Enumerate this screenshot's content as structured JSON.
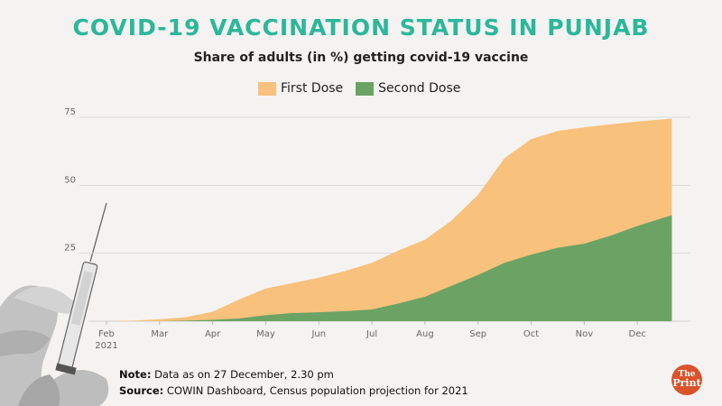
{
  "title": "COVID-19 VACCINATION STATUS IN PUNJAB",
  "subtitle": "Share of adults (in %) getting covid-19 vaccine",
  "legend": {
    "first": "First Dose",
    "second": "Second Dose"
  },
  "colors": {
    "first": "#f8c17c",
    "second": "#6aa364",
    "title": "#2bb79a",
    "axis": "#d8d8d8",
    "text": "#666666"
  },
  "notes": {
    "note_label": "Note:",
    "note_text": "Data as on 27 December, 2.30 pm",
    "source_label": "Source:",
    "source_text": "COWIN Dashboard, Census population projection for 2021"
  },
  "logo": {
    "line1": "The",
    "line2": "Print"
  },
  "chart_data": {
    "type": "area",
    "title": "COVID-19 VACCINATION STATUS IN PUNJAB",
    "subtitle": "Share of adults (in %) getting covid-19 vaccine",
    "xlabel": "",
    "ylabel": "",
    "ylim": [
      0,
      75
    ],
    "xlim": [
      0,
      10.65
    ],
    "yticks": [
      25,
      50,
      75
    ],
    "xticks": [
      {
        "x": 0,
        "label": "Feb",
        "sublabel": "2021"
      },
      {
        "x": 1,
        "label": "Mar"
      },
      {
        "x": 2,
        "label": "Apr"
      },
      {
        "x": 3,
        "label": "May"
      },
      {
        "x": 4,
        "label": "Jun"
      },
      {
        "x": 5,
        "label": "Jul"
      },
      {
        "x": 6,
        "label": "Aug"
      },
      {
        "x": 7,
        "label": "Sep"
      },
      {
        "x": 8,
        "label": "Oct"
      },
      {
        "x": 9,
        "label": "Nov"
      },
      {
        "x": 10,
        "label": "Dec"
      }
    ],
    "x": [
      0,
      0.5,
      1.0,
      1.5,
      2.0,
      2.5,
      3.0,
      3.5,
      4.0,
      4.5,
      5.0,
      5.5,
      6.0,
      6.5,
      7.0,
      7.5,
      8.0,
      8.5,
      9.0,
      9.5,
      10.0,
      10.65
    ],
    "series": [
      {
        "name": "First Dose",
        "values": [
          0,
          0.2,
          0.7,
          1.5,
          3.5,
          8,
          12,
          14,
          16,
          18.5,
          21.5,
          26,
          30,
          37,
          46.5,
          60,
          67,
          70,
          71.3,
          72.4,
          73.4,
          74.5
        ]
      },
      {
        "name": "Second Dose",
        "values": [
          0,
          0,
          0,
          0.2,
          0.5,
          1,
          2.2,
          3,
          3.3,
          3.7,
          4.3,
          6.5,
          9,
          13,
          17,
          21.5,
          24.5,
          27,
          28.5,
          31.5,
          35,
          39
        ]
      }
    ]
  }
}
